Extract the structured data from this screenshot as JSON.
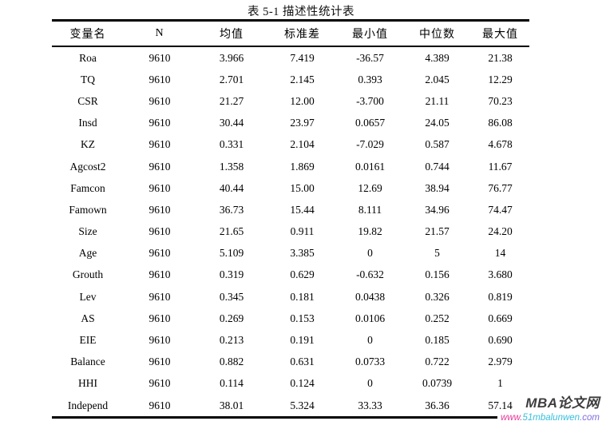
{
  "page": {
    "caption": "表 5-1 描述性统计表"
  },
  "table": {
    "columns": [
      "变量名",
      "N",
      "均值",
      "标准差",
      "最小值",
      "中位数",
      "最大值"
    ],
    "rows": [
      [
        "Roa",
        "9610",
        "3.966",
        "7.419",
        "-36.57",
        "4.389",
        "21.38"
      ],
      [
        "TQ",
        "9610",
        "2.701",
        "2.145",
        "0.393",
        "2.045",
        "12.29"
      ],
      [
        "CSR",
        "9610",
        "21.27",
        "12.00",
        "-3.700",
        "21.11",
        "70.23"
      ],
      [
        "Insd",
        "9610",
        "30.44",
        "23.97",
        "0.0657",
        "24.05",
        "86.08"
      ],
      [
        "KZ",
        "9610",
        "0.331",
        "2.104",
        "-7.029",
        "0.587",
        "4.678"
      ],
      [
        "Agcost2",
        "9610",
        "1.358",
        "1.869",
        "0.0161",
        "0.744",
        "11.67"
      ],
      [
        "Famcon",
        "9610",
        "40.44",
        "15.00",
        "12.69",
        "38.94",
        "76.77"
      ],
      [
        "Famown",
        "9610",
        "36.73",
        "15.44",
        "8.111",
        "34.96",
        "74.47"
      ],
      [
        "Size",
        "9610",
        "21.65",
        "0.911",
        "19.82",
        "21.57",
        "24.20"
      ],
      [
        "Age",
        "9610",
        "5.109",
        "3.385",
        "0",
        "5",
        "14"
      ],
      [
        "Grouth",
        "9610",
        "0.319",
        "0.629",
        "-0.632",
        "0.156",
        "3.680"
      ],
      [
        "Lev",
        "9610",
        "0.345",
        "0.181",
        "0.0438",
        "0.326",
        "0.819"
      ],
      [
        "AS",
        "9610",
        "0.269",
        "0.153",
        "0.0106",
        "0.252",
        "0.669"
      ],
      [
        "EIE",
        "9610",
        "0.213",
        "0.191",
        "0",
        "0.185",
        "0.690"
      ],
      [
        "Balance",
        "9610",
        "0.882",
        "0.631",
        "0.0733",
        "0.722",
        "2.979"
      ],
      [
        "HHI",
        "9610",
        "0.114",
        "0.124",
        "0",
        "0.0739",
        "1"
      ],
      [
        "Independ",
        "9610",
        "38.01",
        "5.324",
        "33.33",
        "36.36",
        "57.14"
      ]
    ]
  },
  "watermark": {
    "site_name": "MBA论文网",
    "url_www": "www.",
    "url_domain": "51mbalunwen",
    "url_tld": ".com",
    "colors": {
      "site_name": "#3d3d3d",
      "www": "#e6399b",
      "domain": "#35bfdf",
      "tld": "#7e6ee0"
    }
  }
}
